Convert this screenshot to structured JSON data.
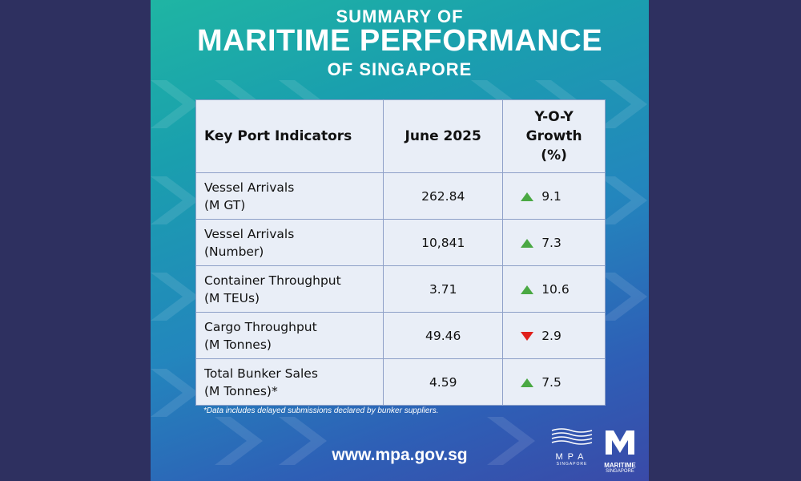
{
  "title": {
    "line1": "SUMMARY OF",
    "line2": "MARITIME PERFORMANCE",
    "line3": "OF SINGAPORE"
  },
  "table": {
    "headers": [
      "Key Port Indicators",
      "June 2025",
      "Y-O-Y Growth (%)"
    ],
    "header_growth_lines": [
      "Y-O-Y",
      "Growth",
      "(%)"
    ],
    "rows": [
      {
        "label1": "Vessel Arrivals",
        "label2": "(M GT)",
        "value": "262.84",
        "growth": "9.1",
        "direction": "up"
      },
      {
        "label1": "Vessel Arrivals",
        "label2": "(Number)",
        "value": "10,841",
        "growth": "7.3",
        "direction": "up"
      },
      {
        "label1": "Container Throughput",
        "label2": "(M TEUs)",
        "value": "3.71",
        "growth": "10.6",
        "direction": "up"
      },
      {
        "label1": "Cargo Throughput",
        "label2": "(M Tonnes)",
        "value": "49.46",
        "growth": "2.9",
        "direction": "down"
      },
      {
        "label1": "Total Bunker Sales",
        "label2": "(M Tonnes)*",
        "value": "4.59",
        "growth": "7.5",
        "direction": "up"
      }
    ]
  },
  "footnote": "*Data includes delayed submissions declared by bunker suppliers.",
  "url": "www.mpa.gov.sg",
  "logos": {
    "mpa_name": "MPA",
    "mpa_sub": "SINGAPORE",
    "ms_line1": "MARITIME",
    "ms_line2": "SINGAPORE"
  },
  "colors": {
    "background": "#2e3060",
    "up_arrow": "#4aa843",
    "down_arrow": "#e0201c"
  }
}
